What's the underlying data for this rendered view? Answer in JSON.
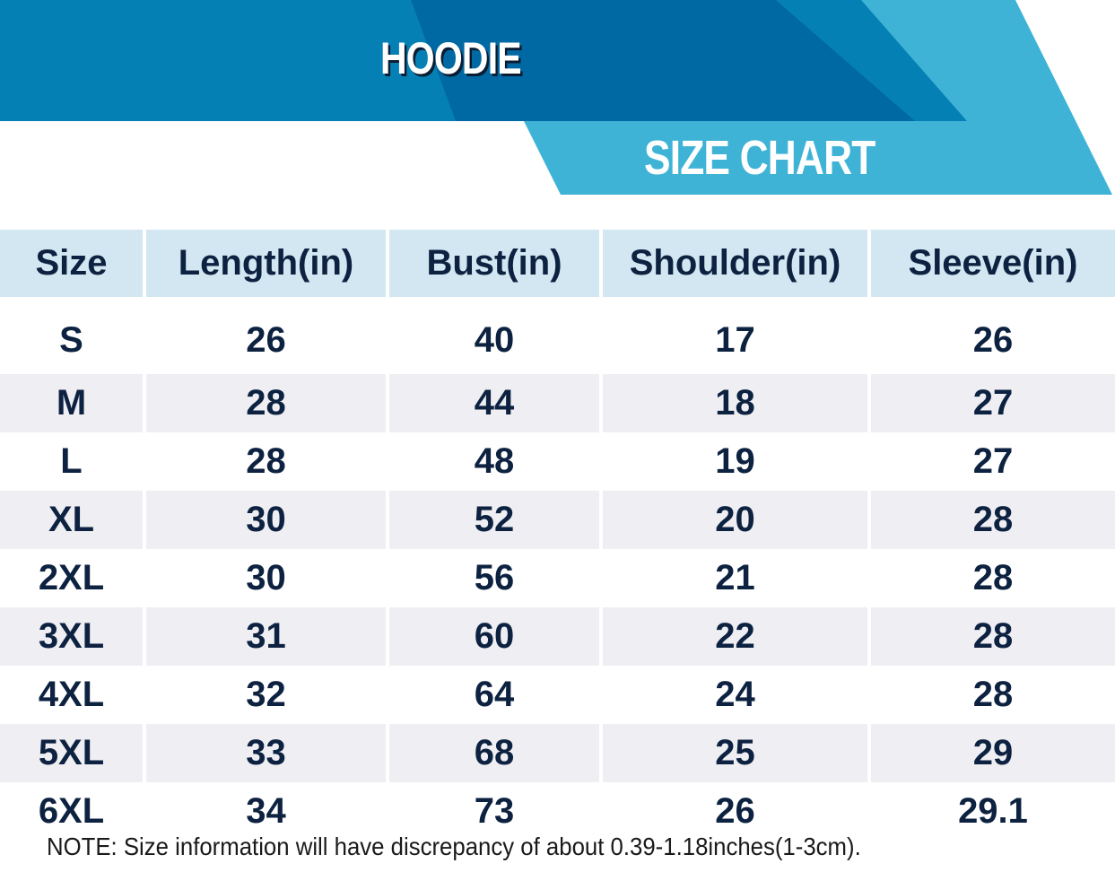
{
  "header": {
    "title": "HOODIE",
    "subtitle": "SIZE CHART",
    "colors": {
      "band": "#0580b5",
      "dark": "#0069a3",
      "light": "#3fb3d6"
    }
  },
  "table": {
    "columns": [
      "Size",
      "Length(in)",
      "Bust(in)",
      "Shoulder(in)",
      "Sleeve(in)"
    ],
    "rows": [
      [
        "S",
        "26",
        "40",
        "17",
        "26"
      ],
      [
        "M",
        "28",
        "44",
        "18",
        "27"
      ],
      [
        "L",
        "28",
        "48",
        "19",
        "27"
      ],
      [
        "XL",
        "30",
        "52",
        "20",
        "28"
      ],
      [
        "2XL",
        "30",
        "56",
        "21",
        "28"
      ],
      [
        "3XL",
        "31",
        "60",
        "22",
        "28"
      ],
      [
        "4XL",
        "32",
        "64",
        "24",
        "28"
      ],
      [
        "5XL",
        "33",
        "68",
        "25",
        "29"
      ],
      [
        "6XL",
        "34",
        "73",
        "26",
        "29.1"
      ]
    ]
  },
  "note": "NOTE: Size information will have discrepancy of about 0.39-1.18inches(1-3cm)."
}
